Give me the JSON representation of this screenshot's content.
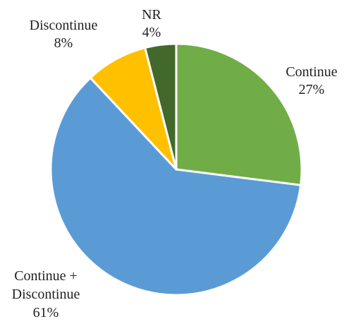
{
  "chart_data": {
    "type": "pie",
    "categories": [
      "Continue",
      "Continue + Discontinue",
      "Discontinue",
      "NR"
    ],
    "values": [
      27,
      61,
      8,
      4
    ],
    "value_labels": [
      "27%",
      "61%",
      "8%",
      "4%"
    ],
    "colors": [
      "#70ad47",
      "#5b9bd5",
      "#ffc000",
      "#43682b"
    ]
  }
}
